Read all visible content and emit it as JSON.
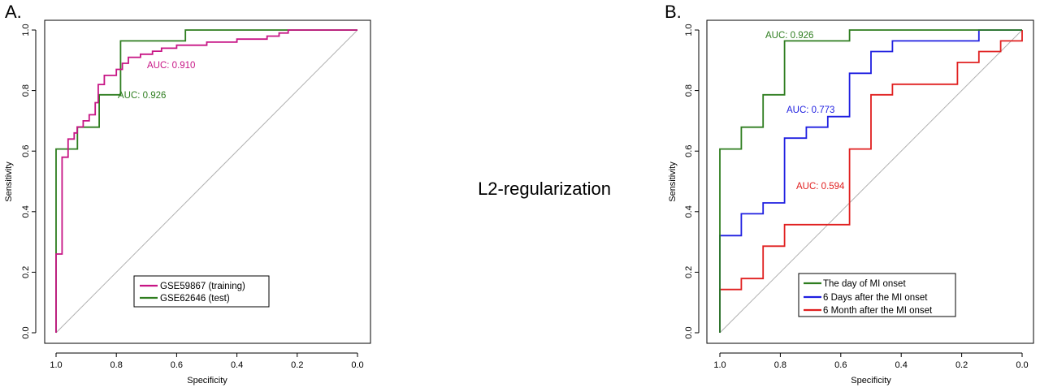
{
  "center_title": "L2-regularization",
  "panels": [
    {
      "label": "A.",
      "xlabel": "Specificity",
      "ylabel": "Sensitivity",
      "x_ticks": [
        "1.0",
        "0.8",
        "0.6",
        "0.4",
        "0.2",
        "0.0"
      ],
      "y_ticks": [
        "0.0",
        "0.2",
        "0.4",
        "0.6",
        "0.8",
        "1.0"
      ],
      "legend": [
        {
          "name": "GSE59867 (training)",
          "color": "#c71585"
        },
        {
          "name": "GSE62646 (test)",
          "color": "#2e7d1f"
        }
      ],
      "auc_labels": [
        {
          "text": "AUC: 0.910",
          "color": "#c71585"
        },
        {
          "text": "AUC: 0.926",
          "color": "#2e7d1f"
        }
      ]
    },
    {
      "label": "B.",
      "xlabel": "Specificity",
      "ylabel": "Sensitivity",
      "x_ticks": [
        "1.0",
        "0.8",
        "0.6",
        "0.4",
        "0.2",
        "0.0"
      ],
      "y_ticks": [
        "0.0",
        "0.2",
        "0.4",
        "0.6",
        "0.8",
        "1.0"
      ],
      "legend": [
        {
          "name": "The day of MI onset",
          "color": "#2e7d1f"
        },
        {
          "name": "6 Days after the MI onset",
          "color": "#1f1fe0"
        },
        {
          "name": "6 Month after the MI onset",
          "color": "#e01f1f"
        }
      ],
      "auc_labels": [
        {
          "text": "AUC: 0.926",
          "color": "#2e7d1f"
        },
        {
          "text": "AUC: 0.773",
          "color": "#1f1fe0"
        },
        {
          "text": "AUC: 0.594",
          "color": "#e01f1f"
        }
      ]
    }
  ],
  "chart_data": [
    {
      "type": "line",
      "title": "",
      "xlabel": "Specificity",
      "ylabel": "Sensitivity",
      "xlim": [
        1.0,
        0.0
      ],
      "ylim": [
        0.0,
        1.0
      ],
      "x_reversed": true,
      "grid": false,
      "legend_position": "bottom-right",
      "reference_line": "diagonal",
      "series": [
        {
          "name": "GSE59867 (training)",
          "color": "#c71585",
          "auc": "AUC: 0.910",
          "points": [
            [
              1.0,
              0.0
            ],
            [
              1.0,
              0.26
            ],
            [
              0.98,
              0.26
            ],
            [
              0.98,
              0.58
            ],
            [
              0.96,
              0.58
            ],
            [
              0.96,
              0.64
            ],
            [
              0.94,
              0.64
            ],
            [
              0.94,
              0.66
            ],
            [
              0.93,
              0.66
            ],
            [
              0.93,
              0.68
            ],
            [
              0.91,
              0.68
            ],
            [
              0.91,
              0.7
            ],
            [
              0.89,
              0.7
            ],
            [
              0.89,
              0.72
            ],
            [
              0.87,
              0.72
            ],
            [
              0.87,
              0.76
            ],
            [
              0.86,
              0.76
            ],
            [
              0.86,
              0.82
            ],
            [
              0.84,
              0.82
            ],
            [
              0.84,
              0.85
            ],
            [
              0.8,
              0.85
            ],
            [
              0.8,
              0.87
            ],
            [
              0.78,
              0.87
            ],
            [
              0.78,
              0.89
            ],
            [
              0.76,
              0.89
            ],
            [
              0.76,
              0.91
            ],
            [
              0.72,
              0.91
            ],
            [
              0.72,
              0.92
            ],
            [
              0.68,
              0.92
            ],
            [
              0.68,
              0.93
            ],
            [
              0.65,
              0.93
            ],
            [
              0.65,
              0.94
            ],
            [
              0.6,
              0.94
            ],
            [
              0.6,
              0.95
            ],
            [
              0.5,
              0.95
            ],
            [
              0.5,
              0.96
            ],
            [
              0.4,
              0.96
            ],
            [
              0.4,
              0.97
            ],
            [
              0.3,
              0.97
            ],
            [
              0.3,
              0.98
            ],
            [
              0.26,
              0.98
            ],
            [
              0.26,
              0.99
            ],
            [
              0.23,
              0.99
            ],
            [
              0.23,
              1.0
            ],
            [
              0.0,
              1.0
            ]
          ]
        },
        {
          "name": "GSE62646 (test)",
          "color": "#2e7d1f",
          "auc": "AUC: 0.926",
          "points": [
            [
              1.0,
              0.0
            ],
            [
              1.0,
              0.607
            ],
            [
              0.929,
              0.607
            ],
            [
              0.929,
              0.679
            ],
            [
              0.857,
              0.679
            ],
            [
              0.857,
              0.786
            ],
            [
              0.786,
              0.786
            ],
            [
              0.786,
              0.964
            ],
            [
              0.571,
              0.964
            ],
            [
              0.571,
              1.0
            ],
            [
              0.0,
              1.0
            ]
          ]
        }
      ]
    },
    {
      "type": "line",
      "title": "",
      "xlabel": "Specificity",
      "ylabel": "Sensitivity",
      "xlim": [
        1.0,
        0.0
      ],
      "ylim": [
        0.0,
        1.0
      ],
      "x_reversed": true,
      "grid": false,
      "legend_position": "bottom-right",
      "reference_line": "diagonal",
      "series": [
        {
          "name": "The day of MI onset",
          "color": "#2e7d1f",
          "auc": "AUC: 0.926",
          "points": [
            [
              1.0,
              0.0
            ],
            [
              1.0,
              0.607
            ],
            [
              0.929,
              0.607
            ],
            [
              0.929,
              0.679
            ],
            [
              0.857,
              0.679
            ],
            [
              0.857,
              0.786
            ],
            [
              0.786,
              0.786
            ],
            [
              0.786,
              0.964
            ],
            [
              0.571,
              0.964
            ],
            [
              0.571,
              1.0
            ],
            [
              0.0,
              1.0
            ]
          ]
        },
        {
          "name": "6 Days after the MI onset",
          "color": "#1f1fe0",
          "auc": "AUC: 0.773",
          "points": [
            [
              1.0,
              0.0
            ],
            [
              1.0,
              0.321
            ],
            [
              0.929,
              0.321
            ],
            [
              0.929,
              0.393
            ],
            [
              0.857,
              0.393
            ],
            [
              0.857,
              0.429
            ],
            [
              0.786,
              0.429
            ],
            [
              0.786,
              0.643
            ],
            [
              0.714,
              0.643
            ],
            [
              0.714,
              0.679
            ],
            [
              0.643,
              0.679
            ],
            [
              0.643,
              0.714
            ],
            [
              0.571,
              0.714
            ],
            [
              0.571,
              0.857
            ],
            [
              0.5,
              0.857
            ],
            [
              0.5,
              0.929
            ],
            [
              0.429,
              0.929
            ],
            [
              0.429,
              0.964
            ],
            [
              0.143,
              0.964
            ],
            [
              0.143,
              1.0
            ],
            [
              0.0,
              1.0
            ]
          ]
        },
        {
          "name": "6 Month after the MI onset",
          "color": "#e01f1f",
          "auc": "AUC: 0.594",
          "points": [
            [
              1.0,
              0.0
            ],
            [
              1.0,
              0.143
            ],
            [
              0.929,
              0.143
            ],
            [
              0.929,
              0.179
            ],
            [
              0.857,
              0.179
            ],
            [
              0.857,
              0.286
            ],
            [
              0.786,
              0.286
            ],
            [
              0.786,
              0.357
            ],
            [
              0.571,
              0.357
            ],
            [
              0.571,
              0.607
            ],
            [
              0.5,
              0.607
            ],
            [
              0.5,
              0.786
            ],
            [
              0.429,
              0.786
            ],
            [
              0.429,
              0.821
            ],
            [
              0.214,
              0.821
            ],
            [
              0.214,
              0.893
            ],
            [
              0.143,
              0.893
            ],
            [
              0.143,
              0.929
            ],
            [
              0.071,
              0.929
            ],
            [
              0.071,
              0.964
            ],
            [
              0.0,
              0.964
            ],
            [
              0.0,
              1.0
            ]
          ]
        }
      ]
    }
  ]
}
